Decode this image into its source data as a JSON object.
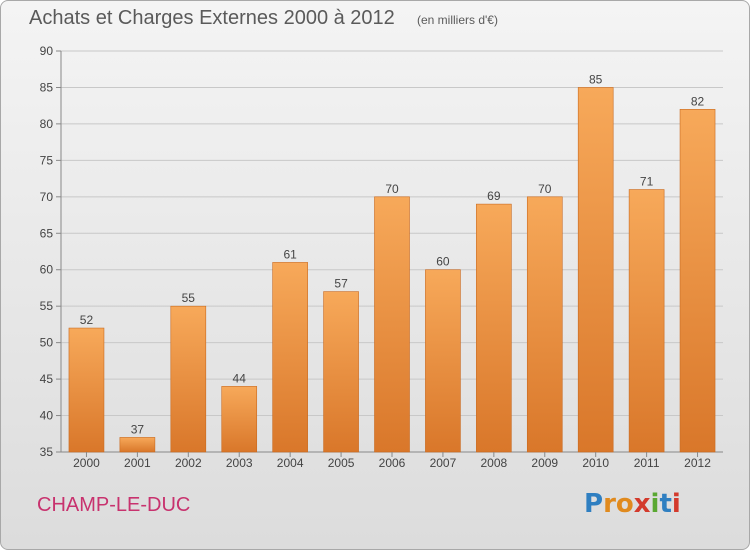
{
  "header": {
    "title": "Achats et Charges Externes 2000 à 2012",
    "subtitle": "(en milliers d'€)"
  },
  "footer": {
    "commune": "CHAMP-LE-DUC",
    "logo_letters": [
      "P",
      "r",
      "o",
      "x",
      "i",
      "t",
      "i"
    ],
    "logo_colors": [
      "#2f7fc1",
      "#e08a1e",
      "#e08a1e",
      "#d33a2c",
      "#5aa832",
      "#2f7fc1",
      "#d33a2c"
    ]
  },
  "colors": {
    "bar_light": "#f7a95a",
    "bar_dark": "#d9772a",
    "grid": "#c8c8c8",
    "axis": "#888888"
  },
  "chart_data": {
    "type": "bar",
    "title": "Achats et Charges Externes 2000 à 2012",
    "subtitle": "(en milliers d'€)",
    "categories": [
      "2000",
      "2001",
      "2002",
      "2003",
      "2004",
      "2005",
      "2006",
      "2007",
      "2008",
      "2009",
      "2010",
      "2011",
      "2012"
    ],
    "values": [
      52,
      37,
      55,
      44,
      61,
      57,
      70,
      60,
      69,
      70,
      85,
      71,
      82
    ],
    "ylim": [
      35,
      90
    ],
    "yticks": [
      35,
      40,
      45,
      50,
      55,
      60,
      65,
      70,
      75,
      80,
      85,
      90
    ],
    "grid": true,
    "data_labels": true
  }
}
